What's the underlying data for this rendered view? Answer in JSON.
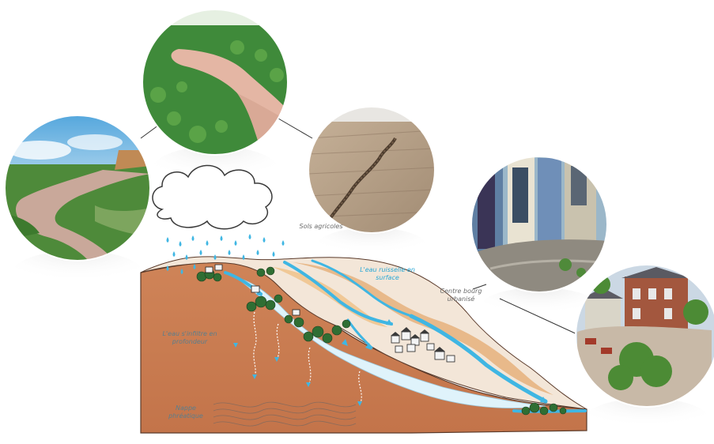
{
  "labels": {
    "agricultural_soils": "Sols agricoles",
    "surface_water": "L'eau ruisselle en surface",
    "urban_center": "Centre bourg urbanisé",
    "infiltrating_water": "L'eau s'infiltre en profondeur",
    "water_table": "Nappe phréatique"
  },
  "icons": {
    "cloud": "rain-cloud-icon",
    "photo_1": "flooded-field-path-photo",
    "photo_2": "muddy-field-runoff-photo",
    "photo_3": "eroded-soil-gully-photo",
    "photo_4": "flooded-street-photo",
    "photo_5": "flooded-houses-photo"
  },
  "colors": {
    "soil": "#c97a4e",
    "water": "#3fb6e3",
    "light_water": "#dff3fb",
    "vegetation": "#2f6e33",
    "field_sand": "#e8b98a"
  }
}
